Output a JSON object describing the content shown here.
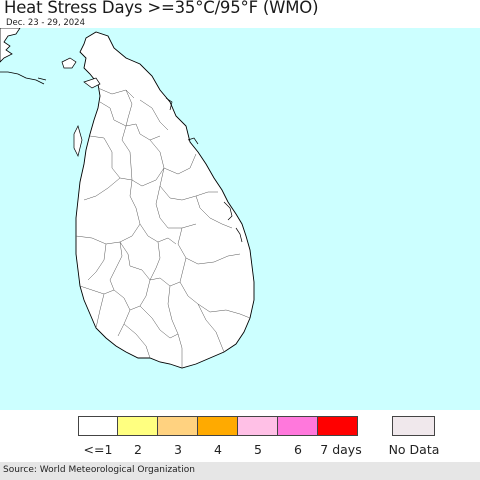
{
  "header": {
    "title": "Heat Stress Days >=35°C/95°F (WMO)",
    "date_range": "Dec. 23 - 29, 2024"
  },
  "map": {
    "sea_color": "#ccffff",
    "land_color": "#ffffff",
    "border_color": "#000000"
  },
  "legend": {
    "items": [
      {
        "label": "<=1",
        "color": "#ffffff"
      },
      {
        "label": "2",
        "color": "#ffff80"
      },
      {
        "label": "3",
        "color": "#ffd280"
      },
      {
        "label": "4",
        "color": "#ffaa00"
      },
      {
        "label": "5",
        "color": "#ffc0e6"
      },
      {
        "label": "6",
        "color": "#ff78dc"
      },
      {
        "label": "7 days",
        "color": "#ff0000"
      }
    ],
    "no_data": {
      "label": "No Data",
      "color": "#f0e8ec"
    }
  },
  "footer": {
    "source": "Source: World Meteorological Organization"
  }
}
